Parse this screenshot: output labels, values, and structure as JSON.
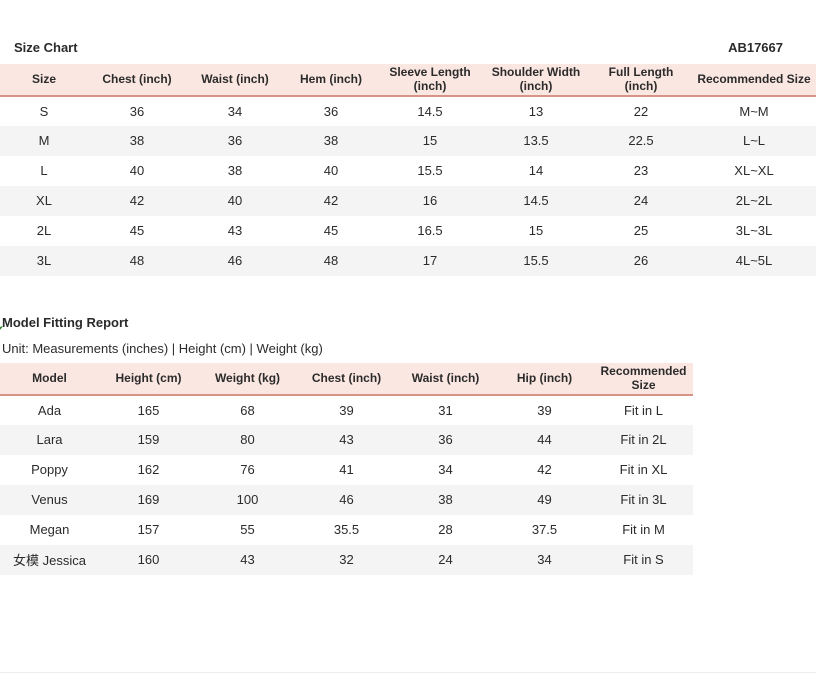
{
  "page": {
    "product_code": "AB17667"
  },
  "size_chart": {
    "title": "Size Chart",
    "columns": [
      "Size",
      "Chest (inch)",
      "Waist (inch)",
      "Hem (inch)",
      "Sleeve Length (inch)",
      "Shoulder Width (inch)",
      "Full Length (inch)",
      "Recommended Size"
    ],
    "rows": [
      [
        "S",
        "36",
        "34",
        "36",
        "14.5",
        "13",
        "22",
        "M~M"
      ],
      [
        "M",
        "38",
        "36",
        "38",
        "15",
        "13.5",
        "22.5",
        "L~L"
      ],
      [
        "L",
        "40",
        "38",
        "40",
        "15.5",
        "14",
        "23",
        "XL~XL"
      ],
      [
        "XL",
        "42",
        "40",
        "42",
        "16",
        "14.5",
        "24",
        "2L~2L"
      ],
      [
        "2L",
        "45",
        "43",
        "45",
        "16.5",
        "15",
        "25",
        "3L~3L"
      ],
      [
        "3L",
        "48",
        "46",
        "48",
        "17",
        "15.5",
        "26",
        "4L~5L"
      ]
    ]
  },
  "fitting_report": {
    "title": "Model Fitting Report",
    "unit_note": "Unit: Measurements (inches) | Height (cm) | Weight (kg)",
    "columns": [
      "Model",
      "Height (cm)",
      "Weight (kg)",
      "Chest (inch)",
      "Waist (inch)",
      "Hip (inch)",
      "Recommended Size"
    ],
    "rows": [
      [
        "Ada",
        "165",
        "68",
        "39",
        "31",
        "39",
        "Fit in L"
      ],
      [
        "Lara",
        "159",
        "80",
        "43",
        "36",
        "44",
        "Fit in 2L"
      ],
      [
        "Poppy",
        "162",
        "76",
        "41",
        "34",
        "42",
        "Fit in XL"
      ],
      [
        "Venus",
        "169",
        "100",
        "46",
        "38",
        "49",
        "Fit in 3L"
      ],
      [
        "Megan",
        "157",
        "55",
        "35.5",
        "28",
        "37.5",
        "Fit in M"
      ],
      [
        "女模 Jessica",
        "160",
        "43",
        "32",
        "24",
        "34",
        "Fit in S"
      ]
    ]
  },
  "colors": {
    "header_bg": "#fbe7e1",
    "header_border": "#d79386",
    "row_alt_bg": "#f4f4f4",
    "text": "#2b2b2b",
    "check_green": "#1a7a1a"
  }
}
